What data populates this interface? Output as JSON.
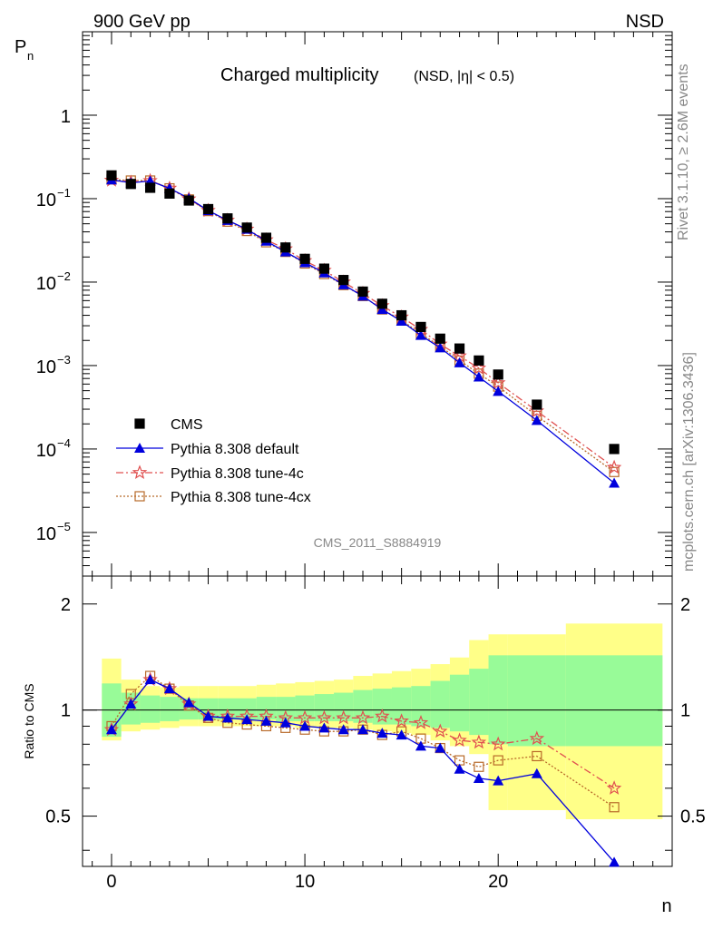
{
  "header": {
    "energy_label": "900 GeV pp",
    "process_label": "NSD",
    "title_main": "Charged multiplicity",
    "title_sub": "(NSD, |η| < 0.5)",
    "analysis_id": "CMS_2011_S8884919"
  },
  "side_labels": {
    "rivet": "Rivet 3.1.10, ≥ 2.6M events",
    "mcplots": "mcplots.cern.ch [arXiv:1306.3436]"
  },
  "axes": {
    "top_ylabel": "P",
    "top_ylabel_sub": "n",
    "bottom_ylabel": "Ratio to CMS",
    "xlabel": "n",
    "x_ticks": [
      "0",
      "10",
      "20"
    ],
    "top_y_ticks": [
      {
        "base": "10",
        "exp": "−5",
        "value": 1e-05
      },
      {
        "base": "10",
        "exp": "−4",
        "value": 0.0001
      },
      {
        "base": "10",
        "exp": "−3",
        "value": 0.001
      },
      {
        "base": "10",
        "exp": "−2",
        "value": 0.01
      },
      {
        "base": "10",
        "exp": "−1",
        "value": 0.1
      },
      {
        "base": "1",
        "exp": "",
        "value": 1
      }
    ],
    "ratio_y_ticks": [
      "0.5",
      "1",
      "2"
    ]
  },
  "legend": {
    "cms": "CMS",
    "default": "Pythia 8.308 default",
    "tune4c": "Pythia 8.308 tune-4c",
    "tune4cx": "Pythia 8.308 tune-4cx"
  },
  "colors": {
    "cms": "#000000",
    "default": "#0000dd",
    "tune4c": "#e05050",
    "tune4cx": "#b86a2a",
    "band_inner": "#98fb98",
    "band_outer": "#ffff88"
  },
  "chart_data": {
    "type": "line",
    "xlim": [
      -1.5,
      29
    ],
    "ylim": [
      3e-06,
      10
    ],
    "yscale": "log",
    "ratio_ylim": [
      0.36,
      2.4
    ],
    "ratio_yscale": "log",
    "x": [
      0,
      1,
      2,
      3,
      4,
      5,
      6,
      7,
      8,
      9,
      10,
      11,
      12,
      13,
      14,
      15,
      16,
      17,
      18,
      19,
      20,
      22,
      26
    ],
    "series": [
      {
        "name": "CMS",
        "values": [
          0.19,
          0.15,
          0.135,
          0.115,
          0.095,
          0.075,
          0.058,
          0.045,
          0.034,
          0.026,
          0.019,
          0.0145,
          0.0106,
          0.0077,
          0.0055,
          0.004,
          0.0029,
          0.0021,
          0.0016,
          0.00115,
          0.00078,
          0.00034,
          0.0001
        ]
      },
      {
        "name": "Pythia 8.308 default",
        "values": [
          0.168,
          0.155,
          0.163,
          0.133,
          0.101,
          0.072,
          0.055,
          0.043,
          0.031,
          0.023,
          0.0171,
          0.0129,
          0.0093,
          0.0068,
          0.0047,
          0.0034,
          0.0023,
          0.00163,
          0.00108,
          0.00073,
          0.00049,
          0.00022,
          3.9e-05
        ]
      },
      {
        "name": "Pythia 8.308 tune-4c",
        "values": [
          0.166,
          0.156,
          0.164,
          0.133,
          0.099,
          0.072,
          0.055,
          0.043,
          0.032,
          0.025,
          0.018,
          0.0138,
          0.01,
          0.0073,
          0.0052,
          0.0038,
          0.0027,
          0.0018,
          0.0013,
          0.00093,
          0.00062,
          0.000285,
          6e-05
        ]
      },
      {
        "name": "Pythia 8.308 tune-4cx",
        "values": [
          0.17,
          0.165,
          0.165,
          0.133,
          0.098,
          0.071,
          0.053,
          0.041,
          0.03,
          0.023,
          0.0167,
          0.0125,
          0.0092,
          0.0068,
          0.0047,
          0.0035,
          0.0024,
          0.0017,
          0.00115,
          0.0008,
          0.00056,
          0.00025,
          5.3e-05
        ]
      }
    ],
    "ratio": {
      "default": [
        0.88,
        1.04,
        1.22,
        1.15,
        1.05,
        0.96,
        0.95,
        0.94,
        0.93,
        0.92,
        0.9,
        0.89,
        0.88,
        0.88,
        0.86,
        0.85,
        0.79,
        0.78,
        0.68,
        0.64,
        0.63,
        0.66,
        0.37
      ],
      "tune4c": [
        0.88,
        1.04,
        1.22,
        1.15,
        1.04,
        0.96,
        0.96,
        0.96,
        0.96,
        0.95,
        0.95,
        0.95,
        0.95,
        0.95,
        0.96,
        0.93,
        0.92,
        0.87,
        0.82,
        0.81,
        0.8,
        0.83,
        0.6
      ],
      "tune4cx": [
        0.9,
        1.11,
        1.25,
        1.15,
        1.03,
        0.95,
        0.92,
        0.91,
        0.9,
        0.89,
        0.88,
        0.87,
        0.87,
        0.88,
        0.85,
        0.87,
        0.83,
        0.78,
        0.72,
        0.69,
        0.72,
        0.74,
        0.53
      ]
    },
    "ratio_bands": {
      "edges": [
        -0.5,
        0.5,
        1.5,
        2.5,
        3.5,
        4.5,
        5.5,
        6.5,
        7.5,
        8.5,
        9.5,
        10.5,
        11.5,
        12.5,
        13.5,
        14.5,
        15.5,
        16.5,
        17.5,
        18.5,
        19.5,
        20.5,
        23.5,
        28.5
      ],
      "inner": [
        [
          0.84,
          1.19
        ],
        [
          0.91,
          1.12
        ],
        [
          0.92,
          1.1
        ],
        [
          0.93,
          1.09
        ],
        [
          0.94,
          1.08
        ],
        [
          0.94,
          1.08
        ],
        [
          0.94,
          1.08
        ],
        [
          0.94,
          1.08
        ],
        [
          0.94,
          1.09
        ],
        [
          0.93,
          1.09
        ],
        [
          0.93,
          1.1
        ],
        [
          0.93,
          1.11
        ],
        [
          0.93,
          1.12
        ],
        [
          0.92,
          1.14
        ],
        [
          0.91,
          1.15
        ],
        [
          0.91,
          1.16
        ],
        [
          0.9,
          1.17
        ],
        [
          0.89,
          1.21
        ],
        [
          0.87,
          1.26
        ],
        [
          0.85,
          1.31
        ],
        [
          0.8,
          1.43
        ],
        [
          0.79,
          1.43
        ],
        [
          0.79,
          1.43
        ]
      ],
      "outer": [
        [
          0.82,
          1.4
        ],
        [
          0.87,
          1.22
        ],
        [
          0.88,
          1.17
        ],
        [
          0.89,
          1.16
        ],
        [
          0.9,
          1.17
        ],
        [
          0.9,
          1.17
        ],
        [
          0.9,
          1.17
        ],
        [
          0.9,
          1.17
        ],
        [
          0.9,
          1.18
        ],
        [
          0.9,
          1.19
        ],
        [
          0.89,
          1.2
        ],
        [
          0.89,
          1.21
        ],
        [
          0.89,
          1.22
        ],
        [
          0.88,
          1.25
        ],
        [
          0.87,
          1.27
        ],
        [
          0.86,
          1.29
        ],
        [
          0.85,
          1.31
        ],
        [
          0.82,
          1.35
        ],
        [
          0.79,
          1.41
        ],
        [
          0.75,
          1.58
        ],
        [
          0.52,
          1.64
        ],
        [
          0.52,
          1.64
        ],
        [
          0.49,
          1.76
        ]
      ]
    }
  }
}
